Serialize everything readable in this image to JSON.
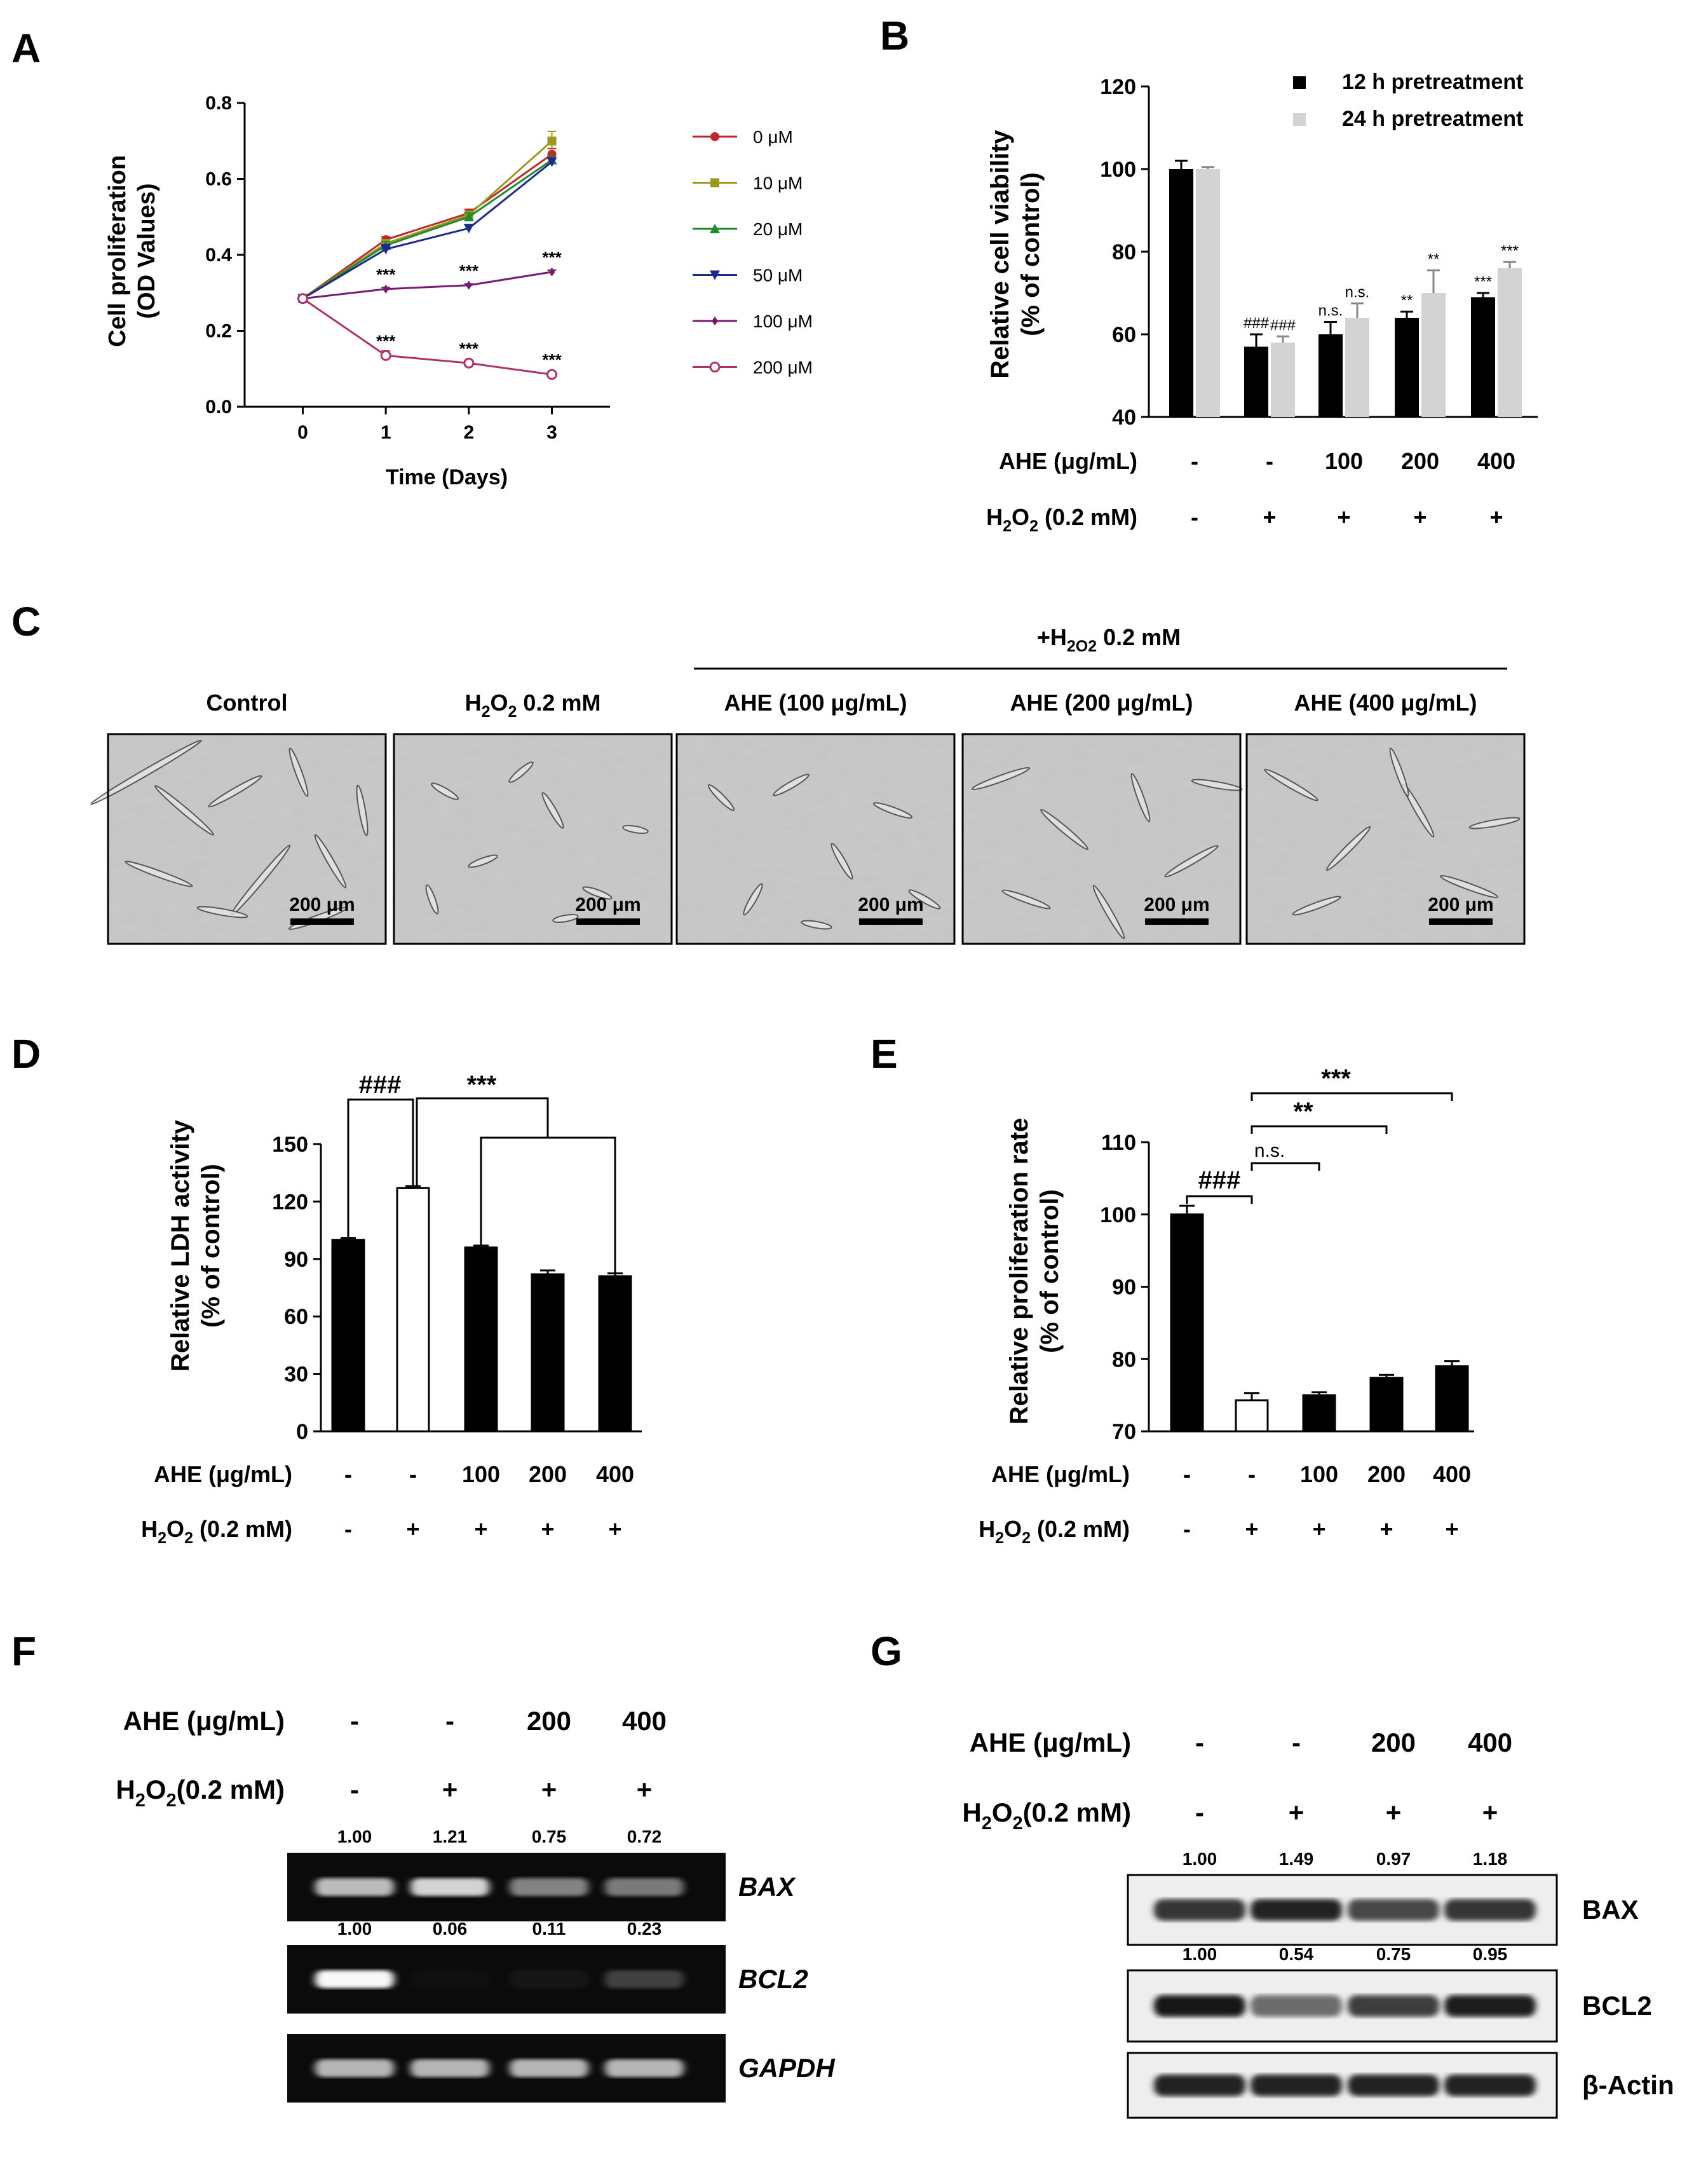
{
  "panel_letters": [
    "A",
    "B",
    "C",
    "D",
    "E",
    "F",
    "G"
  ],
  "chart_data": [
    {
      "panel": "A",
      "type": "line",
      "xlabel": "Time (Days)",
      "ylabel": [
        "Cell proliferation",
        "(OD Values)"
      ],
      "x": [
        0,
        1,
        2,
        3
      ],
      "xlim": [
        -0.7,
        3.7
      ],
      "ylim": [
        0,
        0.8
      ],
      "yticks": [
        "0.0",
        "0.2",
        "0.4",
        "0.6",
        "0.8"
      ],
      "xticks": [
        "0",
        "1",
        "2",
        "3"
      ],
      "legend_position": "right",
      "series": [
        {
          "name": "0 μM",
          "color": "#c0272d",
          "marker": "circle",
          "values": [
            0.285,
            0.44,
            0.51,
            0.665
          ],
          "err": [
            0.005,
            0.008,
            0.01,
            0.015
          ]
        },
        {
          "name": "10 μM",
          "color": "#9c9a1e",
          "marker": "square",
          "values": [
            0.285,
            0.43,
            0.505,
            0.7
          ],
          "err": [
            0.005,
            0.01,
            0.01,
            0.025
          ]
        },
        {
          "name": "20 μM",
          "color": "#1f8a2e",
          "marker": "triangle-up",
          "values": [
            0.285,
            0.425,
            0.5,
            0.65
          ],
          "err": [
            0.005,
            0.01,
            0.01,
            0.01
          ]
        },
        {
          "name": "50 μM",
          "color": "#1c2a8a",
          "marker": "triangle-down",
          "values": [
            0.285,
            0.415,
            0.47,
            0.645
          ],
          "err": [
            0.005,
            0.012,
            0.01,
            0.01
          ]
        },
        {
          "name": "100 μM",
          "color": "#7a1a6e",
          "marker": "diamond",
          "values": [
            0.285,
            0.31,
            0.32,
            0.355
          ],
          "err": [
            0.004,
            0.004,
            0.004,
            0.005
          ]
        },
        {
          "name": "200 μM",
          "color": "#b0306a",
          "marker": "circle-open",
          "values": [
            0.285,
            0.135,
            0.115,
            0.085
          ],
          "err": [
            0.004,
            0.012,
            0.005,
            0.004
          ]
        }
      ],
      "annotations": [
        {
          "x": 1,
          "y": 0.31,
          "text": "***"
        },
        {
          "x": 2,
          "y": 0.32,
          "text": "***"
        },
        {
          "x": 3,
          "y": 0.355,
          "text": "***"
        },
        {
          "x": 1,
          "y": 0.135,
          "text": "***"
        },
        {
          "x": 2,
          "y": 0.115,
          "text": "***"
        },
        {
          "x": 3,
          "y": 0.085,
          "text": "***"
        }
      ]
    },
    {
      "panel": "B",
      "type": "bar",
      "ylabel": [
        "Relative cell viability",
        "(% of control)"
      ],
      "ylim": [
        40,
        120
      ],
      "yticks": [
        "40",
        "60",
        "80",
        "100",
        "120"
      ],
      "categories": [
        "1",
        "2",
        "3",
        "4",
        "5"
      ],
      "legend_position": "top-right",
      "series": [
        {
          "name": "12 h pretreatment",
          "color": "#000000",
          "values": [
            100,
            57,
            60,
            64,
            69
          ],
          "err": [
            2,
            3,
            3,
            1.5,
            1
          ]
        },
        {
          "name": "24 h pretreatment",
          "color": "#d3d3d3",
          "values": [
            100,
            58,
            64,
            70,
            76
          ],
          "err": [
            0.5,
            1.5,
            3.5,
            5.5,
            1.5
          ]
        }
      ],
      "annotations": [
        {
          "bar": [
            1,
            0
          ],
          "text": "###"
        },
        {
          "bar": [
            1,
            1
          ],
          "text": "###"
        },
        {
          "bar": [
            2,
            0
          ],
          "text": "n.s."
        },
        {
          "bar": [
            2,
            1
          ],
          "text": "n.s."
        },
        {
          "bar": [
            3,
            0
          ],
          "text": "**"
        },
        {
          "bar": [
            3,
            1
          ],
          "text": "**"
        },
        {
          "bar": [
            4,
            0
          ],
          "text": "***"
        },
        {
          "bar": [
            4,
            1
          ],
          "text": "***"
        }
      ],
      "row1": {
        "label": "AHE (μg/mL)",
        "values": [
          "-",
          "-",
          "100",
          "200",
          "400"
        ]
      },
      "row2": {
        "label_main": "H",
        "label_sub": "2",
        "label_rest": "O",
        "label_sub2": "2",
        "label_end": " (0.2 mM)",
        "values": [
          "-",
          "+",
          "+",
          "+",
          "+"
        ]
      }
    },
    {
      "panel": "D",
      "type": "bar",
      "ylabel": [
        "Relative LDH activity",
        "(% of control)"
      ],
      "ylim": [
        0,
        150
      ],
      "yticks": [
        "0",
        "30",
        "60",
        "90",
        "120",
        "150"
      ],
      "categories": [
        "1",
        "2",
        "3",
        "4",
        "5"
      ],
      "values": [
        100,
        127,
        96,
        82,
        81
      ],
      "err": [
        1,
        1,
        1,
        2,
        1.5
      ],
      "fills": [
        "#000000",
        "#ffffff",
        "#000000",
        "#000000",
        "#000000"
      ],
      "brackets": [
        {
          "text": "###"
        },
        {
          "text": "***"
        }
      ],
      "row1": {
        "label": "AHE (μg/mL)",
        "values": [
          "-",
          "-",
          "100",
          "200",
          "400"
        ]
      },
      "row2": {
        "values": [
          "-",
          "+",
          "+",
          "+",
          "+"
        ]
      }
    },
    {
      "panel": "E",
      "type": "bar",
      "ylabel": [
        "Relative proliferation rate",
        "(% of control)"
      ],
      "ylim": [
        70,
        110
      ],
      "yticks": [
        "70",
        "80",
        "90",
        "100",
        "110"
      ],
      "categories": [
        "1",
        "2",
        "3",
        "4",
        "5"
      ],
      "values": [
        100,
        74.3,
        75,
        77.4,
        79
      ],
      "err": [
        1.2,
        1,
        0.4,
        0.4,
        0.7
      ],
      "fills": [
        "#000000",
        "#ffffff",
        "#000000",
        "#000000",
        "#000000"
      ],
      "brackets": [
        {
          "text": "###"
        },
        {
          "text": "n.s."
        },
        {
          "text": "**"
        },
        {
          "text": "***"
        }
      ],
      "row1": {
        "label": "AHE (μg/mL)",
        "values": [
          "-",
          "-",
          "100",
          "200",
          "400"
        ]
      },
      "row2": {
        "values": [
          "-",
          "+",
          "+",
          "+",
          "+"
        ]
      }
    }
  ],
  "panel_C": {
    "header": "0.2 mM",
    "header_prefix": "+H",
    "titles": [
      "Control",
      "0.2 mM",
      "AHE (100 μg/mL)",
      "AHE (200 μg/mL)",
      "AHE (400 μg/mL)"
    ],
    "scale_bar_label": "200 μm"
  },
  "panel_F": {
    "row1": {
      "label": "AHE (μg/mL)",
      "values": [
        "-",
        "-",
        "200",
        "400"
      ]
    },
    "row2": {
      "label_end": " (0.2 mM)",
      "values": [
        "-",
        "+",
        "+",
        "+"
      ]
    },
    "bands": [
      {
        "name": "BAX",
        "ratios": [
          "1.00",
          "1.21",
          "0.75",
          "0.72"
        ],
        "intensity": [
          0.72,
          0.78,
          0.55,
          0.52
        ]
      },
      {
        "name": "BCL2",
        "ratios": [
          "1.00",
          "0.06",
          "0.11",
          "0.23"
        ],
        "intensity": [
          0.95,
          0.04,
          0.08,
          0.3
        ]
      },
      {
        "name": "GAPDH",
        "ratios": [],
        "intensity": [
          0.7,
          0.7,
          0.7,
          0.7
        ]
      }
    ]
  },
  "panel_G": {
    "row1": {
      "label": "AHE (μg/mL)",
      "values": [
        "-",
        "-",
        "200",
        "400"
      ]
    },
    "row2": {
      "label_end": " (0.2 mM)",
      "values": [
        "-",
        "+",
        "+",
        "+"
      ]
    },
    "bands": [
      {
        "name": "BAX",
        "ratios": [
          "1.00",
          "1.49",
          "0.97",
          "1.18"
        ],
        "intensity": [
          0.8,
          0.9,
          0.7,
          0.8
        ]
      },
      {
        "name": "BCL2",
        "ratios": [
          "1.00",
          "0.54",
          "0.75",
          "0.95"
        ],
        "intensity": [
          0.95,
          0.5,
          0.75,
          0.92
        ]
      },
      {
        "name": "β-Actin",
        "ratios": [],
        "intensity": [
          0.9,
          0.9,
          0.9,
          0.9
        ]
      }
    ]
  }
}
